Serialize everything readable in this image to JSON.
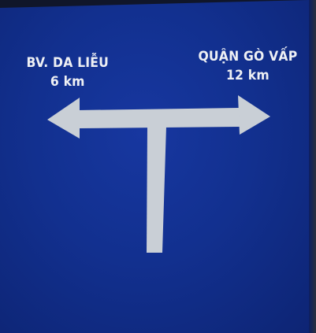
{
  "sign": {
    "background_color": "#12308f",
    "arrow_color": "#c9cfd6",
    "text_color": "#eef0f4",
    "left_destination": {
      "name": "BV. DA LIỄU",
      "distance": "6 km",
      "icon": "arrow-left-icon"
    },
    "right_destination": {
      "name": "QUẬN GÒ VẤP",
      "distance": "12 km",
      "icon": "arrow-right-icon"
    },
    "junction_icon": "t-junction-icon"
  }
}
